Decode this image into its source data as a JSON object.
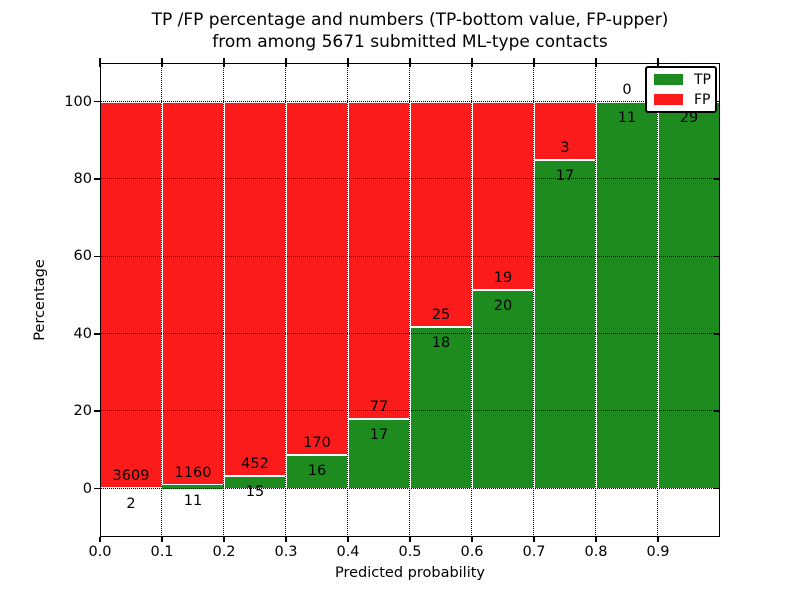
{
  "figure": {
    "title_lines": [
      "TP /FP percentage and numbers (TP-bottom value, FP-upper)",
      "from among 5671 submitted ML-type contacts"
    ]
  },
  "chart_data": {
    "type": "bar",
    "subtype": "stacked-normalized-percent",
    "title": "TP /FP percentage and numbers (TP-bottom value, FP-upper) from among 5671 submitted ML-type contacts",
    "xlabel": "Predicted probability",
    "ylabel": "Percentage",
    "total_contacts": 5671,
    "categories": [
      "0.0-0.1",
      "0.1-0.2",
      "0.2-0.3",
      "0.3-0.4",
      "0.4-0.5",
      "0.5-0.6",
      "0.6-0.7",
      "0.7-0.8",
      "0.8-0.9",
      "0.9-1.0"
    ],
    "series": [
      {
        "name": "TP",
        "color": "#1e8b1e",
        "counts": [
          2,
          11,
          15,
          16,
          17,
          18,
          20,
          17,
          11,
          29
        ]
      },
      {
        "name": "FP",
        "color": "#fb1b1b",
        "counts": [
          3609,
          1160,
          452,
          170,
          77,
          25,
          19,
          3,
          0,
          0
        ]
      }
    ],
    "bar_label_rule": "TP count below segment boundary, FP count above segment boundary",
    "xticks": [
      "0.0",
      "0.1",
      "0.2",
      "0.3",
      "0.4",
      "0.5",
      "0.6",
      "0.7",
      "0.8",
      "0.9"
    ],
    "yticks": [
      0,
      20,
      40,
      60,
      80,
      100
    ],
    "xlim": [
      0,
      1
    ],
    "ylim": [
      -12.5,
      110
    ],
    "grid": "dotted black, x at each 0.1, y at each 20, drawn above bars",
    "bar_edge_color": "#ffffff",
    "legend": {
      "position": "upper right",
      "entries": [
        {
          "label": "TP",
          "color": "#1e8b1e"
        },
        {
          "label": "FP",
          "color": "#fb1b1b"
        }
      ]
    }
  }
}
